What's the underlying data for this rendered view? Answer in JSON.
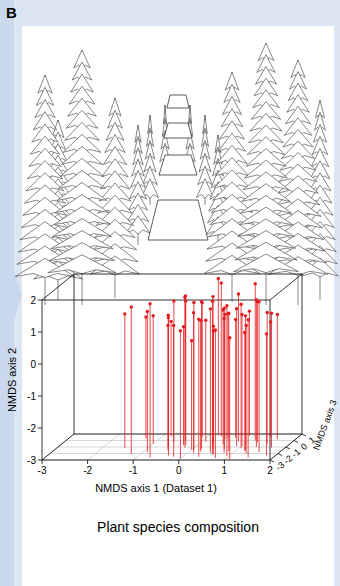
{
  "panel_label": "B",
  "chart_data": {
    "type": "scatter3d",
    "title": "Plant species composition",
    "x_label": "NMDS axis 1 (Dataset 1)",
    "y_label": "NMDS axis 2",
    "z_label": "NMDS axis 3",
    "x": [
      -1.5,
      -1.3,
      -1.2,
      -1.0,
      -0.9,
      -0.8,
      -0.7,
      -0.6,
      -0.5,
      -0.4,
      -0.35,
      -0.3,
      -0.2,
      -0.1,
      0,
      0.05,
      0.1,
      0.15,
      0.2,
      0.25,
      0.3,
      0.35,
      0.4,
      0.45,
      0.5,
      0.55,
      0.6,
      0.65,
      0.7,
      0.75,
      0.8,
      0.85,
      0.9,
      0.95,
      1.0,
      1.05,
      1.1,
      1.15,
      1.2,
      1.25,
      1.3,
      1.35,
      1.4,
      1.45,
      1.5,
      1.55,
      1.6,
      1.7,
      1.8,
      -0.25,
      0.0,
      0.3,
      0.6,
      0.9,
      1.2,
      -0.6,
      -0.2,
      0.2,
      0.5,
      0.8
    ],
    "values": [
      1.2,
      0.8,
      1.6,
      1.0,
      1.4,
      0.6,
      1.8,
      1.1,
      0.9,
      1.5,
      1.3,
      0.7,
      1.7,
      1.2,
      1.0,
      1.6,
      0.8,
      1.4,
      1.9,
      1.1,
      0.5,
      1.3,
      1.7,
      0.9,
      1.5,
      1.2,
      1.8,
      0.7,
      1.4,
      1.0,
      1.6,
      1.3,
      0.9,
      1.7,
      1.1,
      1.5,
      0.8,
      1.9,
      1.2,
      1.4,
      1.0,
      1.6,
      0.6,
      1.3,
      1.1,
      1.7,
      0.9,
      1.2,
      0.8,
      1.5,
      0.4,
      1.8,
      1.0,
      1.3,
      0.7,
      1.4,
      1.1,
      1.6,
      0.9,
      1.2
    ],
    "z": [
      -1.2,
      0.3,
      -2.1,
      -0.5,
      -1.8,
      0.6,
      -2.6,
      -0.9,
      -1.5,
      0.1,
      -2.3,
      -0.7,
      -1.1,
      0.5,
      -2.8,
      -1.4,
      -0.2,
      -2.0,
      0.8,
      -1.7,
      -0.4,
      -2.5,
      -1.0,
      0.2,
      -1.9,
      -0.6,
      -2.2,
      0.4,
      -1.3,
      -2.7,
      -0.1,
      -1.6,
      0.7,
      -2.4,
      -0.8,
      -1.2,
      -2.9,
      0.0,
      -1.5,
      -0.3,
      -2.0,
      -1.0,
      0.5,
      -2.6,
      -0.5,
      -1.8,
      0.2,
      -1.1,
      -2.3,
      -0.7,
      -1.4,
      0.6,
      -2.1,
      -0.9,
      -1.6,
      -0.2,
      -2.5,
      -1.3,
      0.3,
      -1.9
    ],
    "xlim": [
      -3,
      2
    ],
    "xticks": [
      -3,
      -2,
      -1,
      0,
      1,
      2
    ],
    "ylim": [
      -3,
      2
    ],
    "yticks": [
      -3,
      -2,
      -1,
      0,
      1,
      2
    ],
    "zlim": [
      -3,
      1
    ],
    "zticks": [
      -3,
      -2,
      -1,
      0,
      1
    ],
    "color": "#e41a1c",
    "marker": "circle",
    "grid": true
  }
}
